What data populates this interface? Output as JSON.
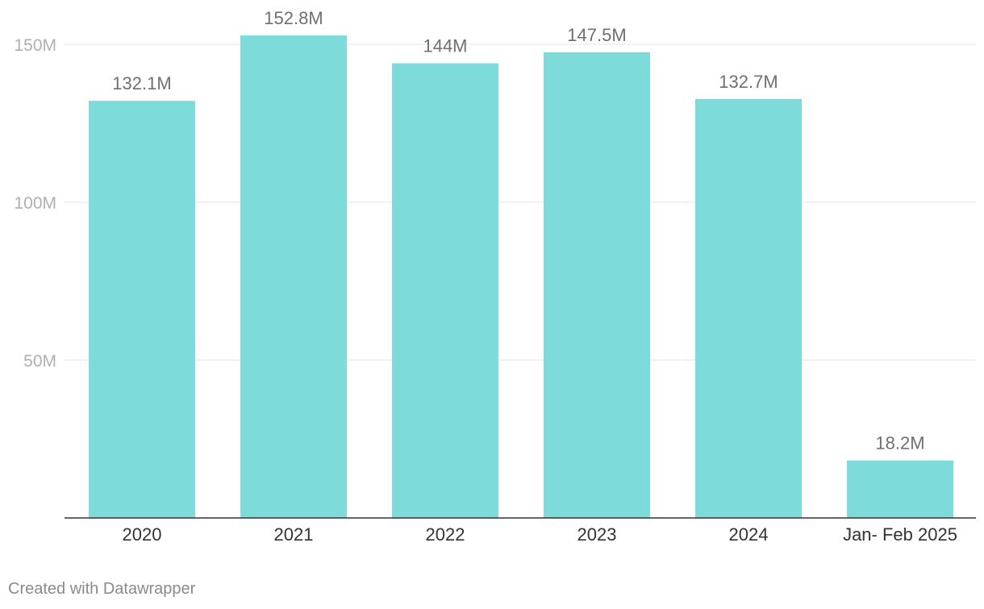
{
  "chart_data": {
    "type": "bar",
    "categories": [
      "2020",
      "2021",
      "2022",
      "2023",
      "2024",
      "Jan- Feb 2025"
    ],
    "values": [
      132.1,
      152.8,
      144,
      147.5,
      132.7,
      18.2
    ],
    "value_labels": [
      "132.1M",
      "152.8M",
      "144M",
      "147.5M",
      "132.7M",
      "18.2M"
    ],
    "title": "",
    "xlabel": "",
    "ylabel": "",
    "ylim": [
      0,
      150
    ],
    "yticks": [
      50,
      100,
      150
    ],
    "ytick_labels": [
      "50M",
      "100M",
      "150M"
    ],
    "grid": true,
    "bar_color": "#7ddbda"
  },
  "footer": {
    "credit": "Created with Datawrapper"
  }
}
